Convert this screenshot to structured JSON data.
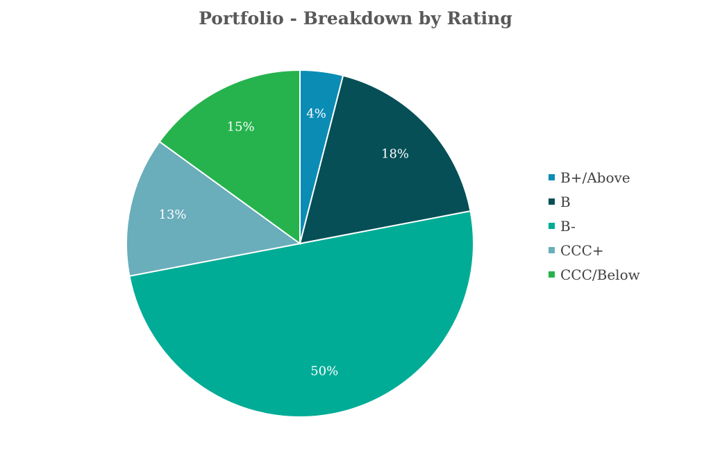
{
  "chart_data": {
    "type": "pie",
    "title": "Portfolio - Breakdown by Rating",
    "categories": [
      "B+/Above",
      "B",
      "B-",
      "CCC+",
      "CCC/Below"
    ],
    "values": [
      4,
      18,
      50,
      13,
      15
    ],
    "labels": [
      "4%",
      "18%",
      "50%",
      "13%",
      "15%"
    ],
    "colors": [
      "#0b8cb5",
      "#064f57",
      "#00ac96",
      "#6aadbb",
      "#26b34d"
    ],
    "legend_position": "right"
  }
}
